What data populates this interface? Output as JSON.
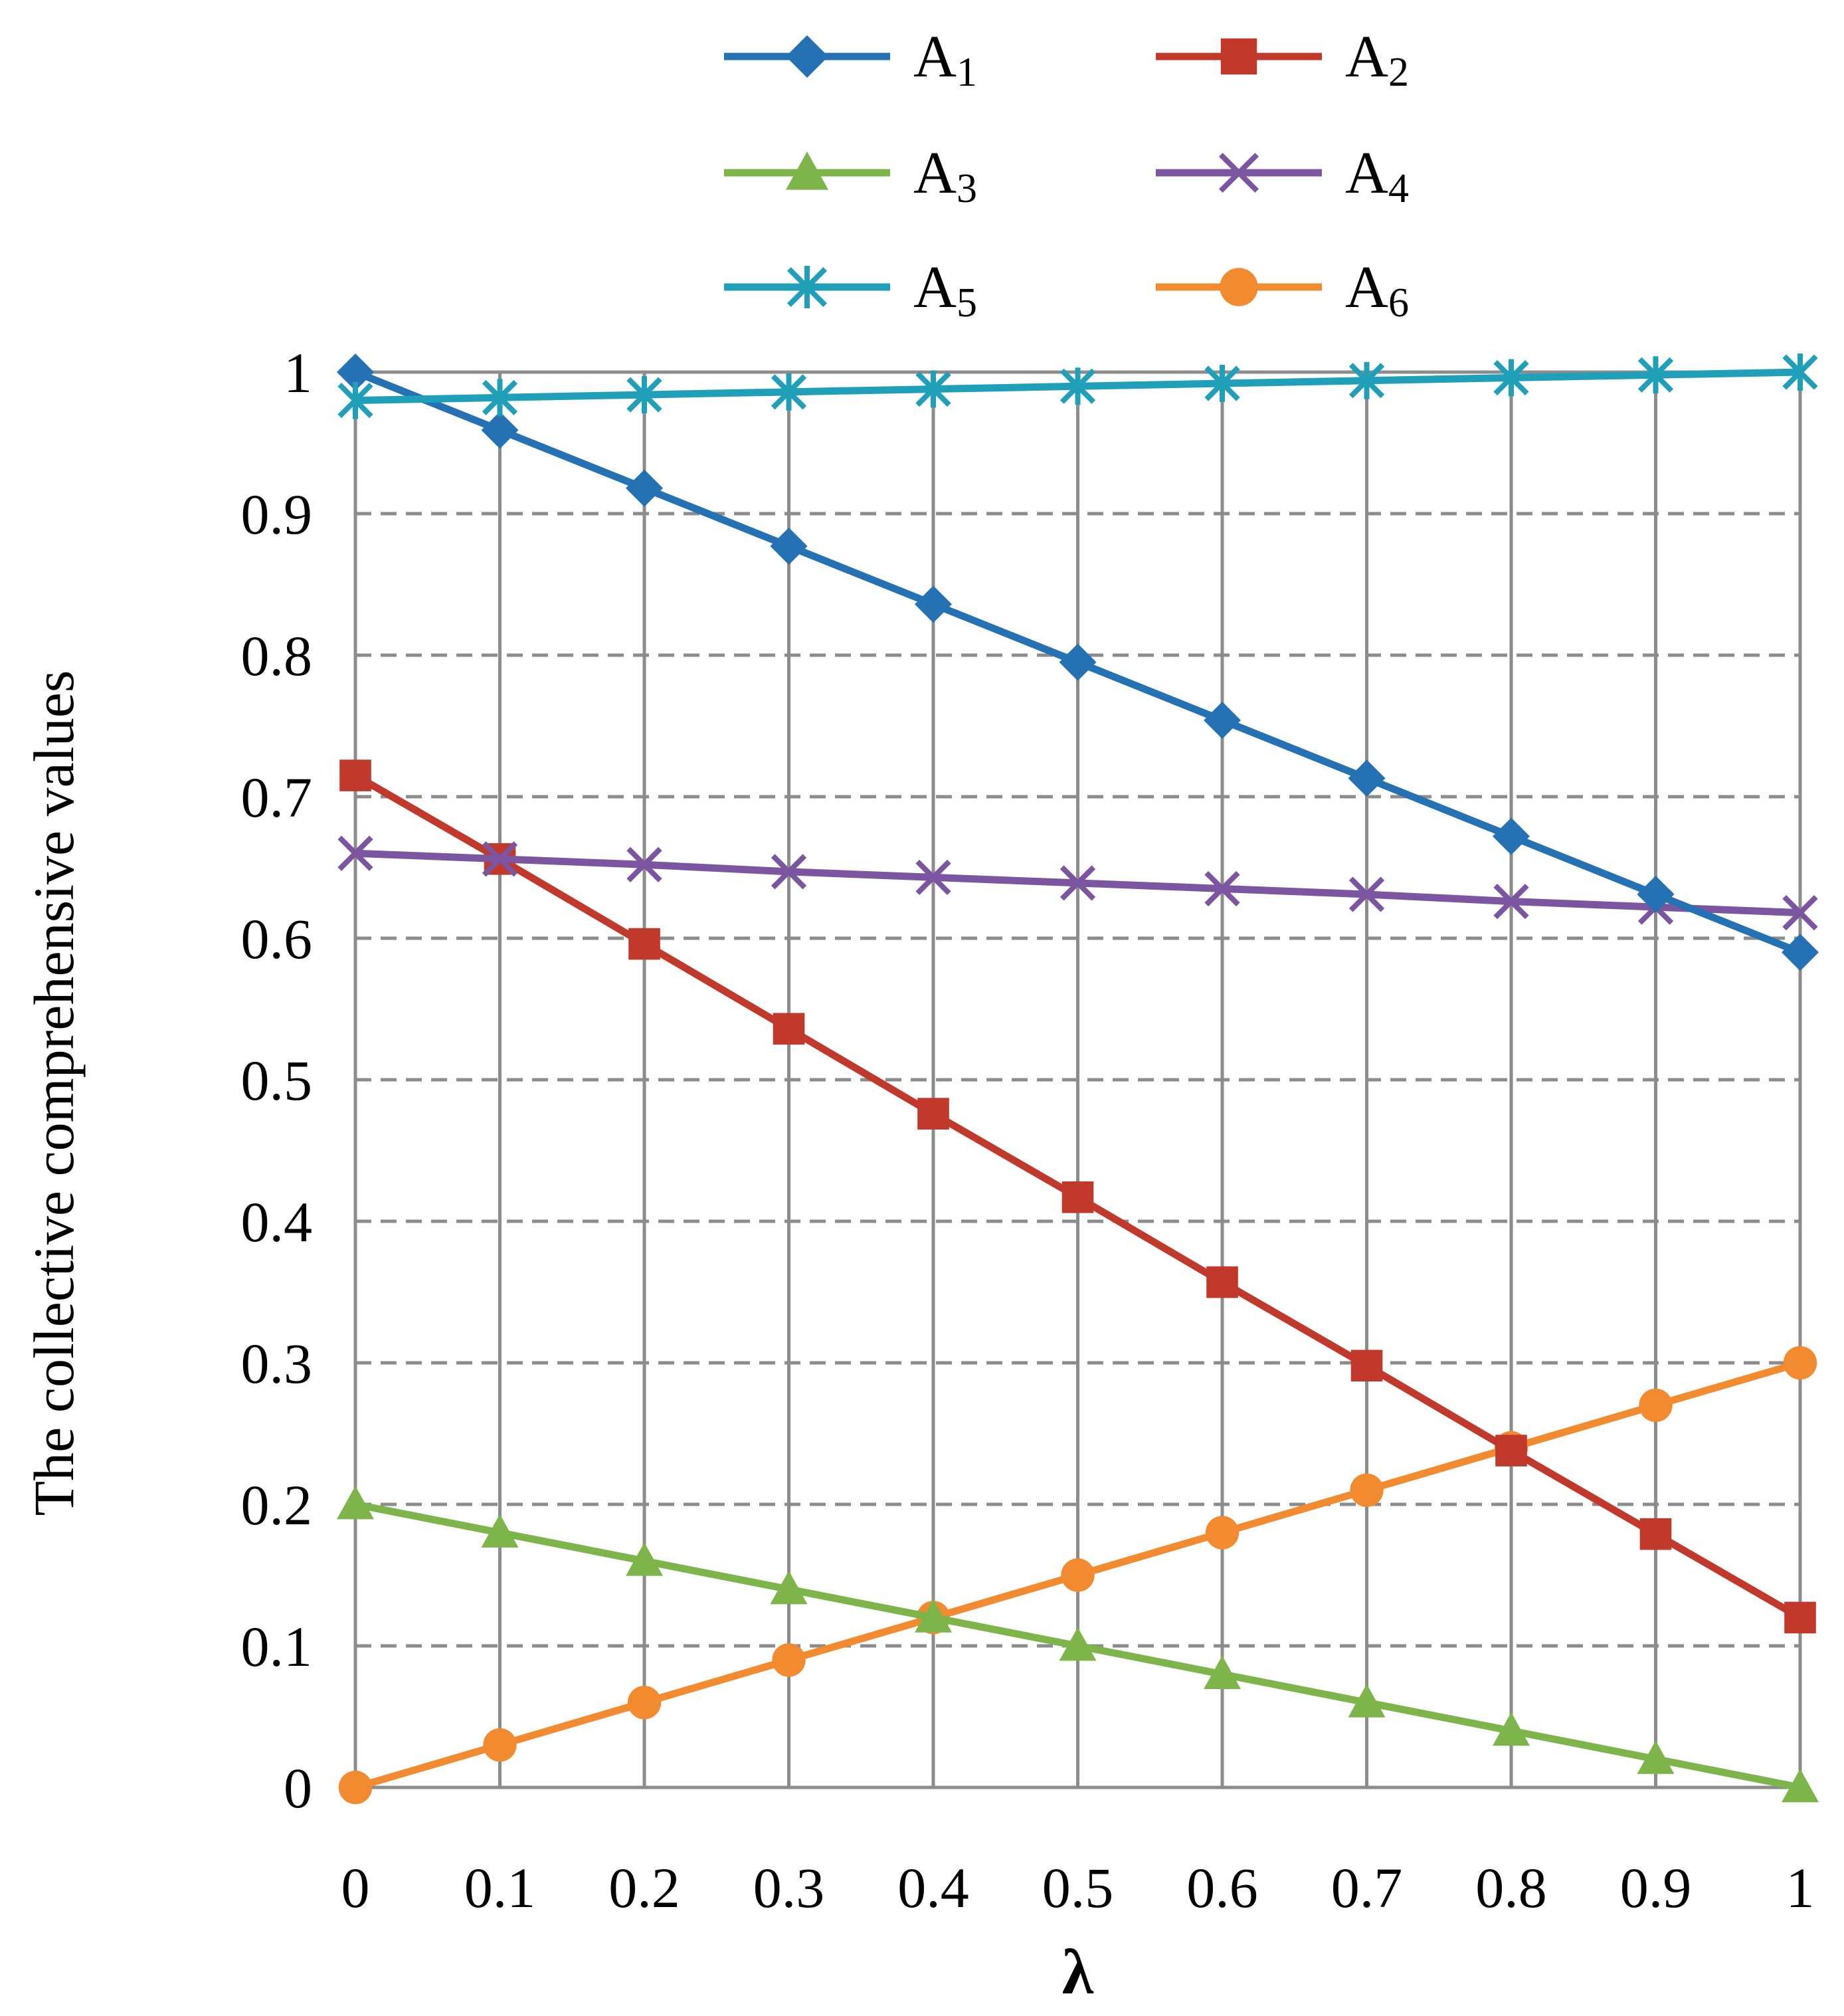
{
  "chart_data": {
    "type": "line",
    "title": "",
    "xlabel": "λ",
    "ylabel": "The collective comprehensive values",
    "x": [
      0,
      0.1,
      0.2,
      0.3,
      0.4,
      0.5,
      0.6,
      0.7,
      0.8,
      0.9,
      1
    ],
    "x_tick_labels": [
      "0",
      "0.1",
      "0.2",
      "0.3",
      "0.4",
      "0.5",
      "0.6",
      "0.7",
      "0.8",
      "0.9",
      "1"
    ],
    "y_ticks": [
      0,
      0.1,
      0.2,
      0.3,
      0.4,
      0.5,
      0.6,
      0.7,
      0.8,
      0.9,
      1
    ],
    "y_tick_labels": [
      "0",
      "0.1",
      "0.2",
      "0.3",
      "0.4",
      "0.5",
      "0.6",
      "0.7",
      "0.8",
      "0.9",
      "1"
    ],
    "xlim": [
      0,
      1
    ],
    "ylim": [
      0,
      1
    ],
    "grid": true,
    "legend_position": "top",
    "series": [
      {
        "name": "A",
        "sub": "1",
        "color": "#2471b3",
        "marker": "diamond",
        "values": [
          1.0,
          0.959,
          0.918,
          0.877,
          0.836,
          0.795,
          0.754,
          0.713,
          0.672,
          0.631,
          0.59
        ]
      },
      {
        "name": "A",
        "sub": "2",
        "color": "#c0392b",
        "marker": "square",
        "values": [
          0.715,
          0.656,
          0.596,
          0.536,
          0.476,
          0.417,
          0.357,
          0.298,
          0.238,
          0.179,
          0.12
        ]
      },
      {
        "name": "A",
        "sub": "3",
        "color": "#7db54a",
        "marker": "triangle",
        "values": [
          0.2,
          0.18,
          0.16,
          0.14,
          0.12,
          0.1,
          0.08,
          0.06,
          0.04,
          0.02,
          0.0
        ]
      },
      {
        "name": "A",
        "sub": "4",
        "color": "#7b559f",
        "marker": "x",
        "values": [
          0.66,
          0.656,
          0.652,
          0.647,
          0.643,
          0.639,
          0.635,
          0.631,
          0.626,
          0.622,
          0.618
        ]
      },
      {
        "name": "A",
        "sub": "5",
        "color": "#1fa0b8",
        "marker": "asterisk",
        "values": [
          0.98,
          0.982,
          0.984,
          0.986,
          0.988,
          0.99,
          0.992,
          0.994,
          0.996,
          0.998,
          1.0
        ]
      },
      {
        "name": "A",
        "sub": "6",
        "color": "#f28a30",
        "marker": "circle",
        "values": [
          0.0,
          0.03,
          0.06,
          0.09,
          0.12,
          0.15,
          0.18,
          0.21,
          0.24,
          0.27,
          0.3
        ]
      }
    ]
  }
}
